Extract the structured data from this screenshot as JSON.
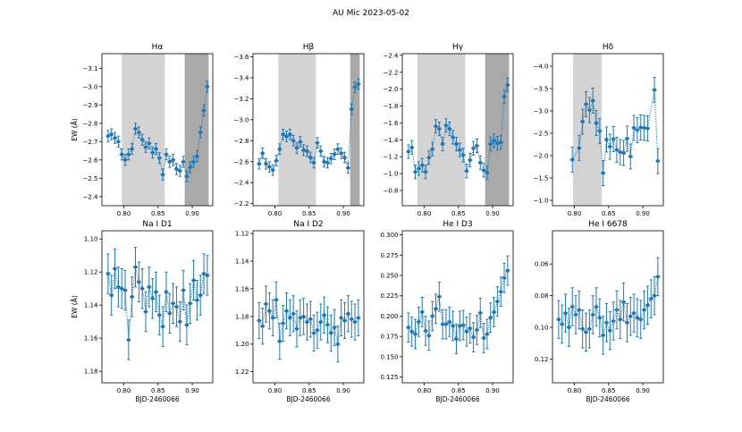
{
  "figure_title": "AU Mic 2023-05-02",
  "colors": {
    "series": "#1f77b4",
    "band_light": "#d3d3d3",
    "band_dark": "#a9a9a9"
  },
  "chart_data": [
    {
      "type": "line",
      "title": "Hα",
      "ylabel": "EW (Å)",
      "xlabel": "",
      "xlim": [
        0.768,
        0.93
      ],
      "ylim": [
        -3.18,
        -2.35
      ],
      "y_inverted": true,
      "xticks": [
        0.8,
        0.85,
        0.9
      ],
      "xtick_labels": [
        "0.80",
        "0.85",
        "0.90"
      ],
      "yticks": [
        -3.1,
        -3.0,
        -2.9,
        -2.8,
        -2.7,
        -2.6,
        -2.5,
        -2.4
      ],
      "ytick_labels": [
        "−3.1",
        "−3.0",
        "−2.9",
        "−2.8",
        "−2.7",
        "−2.6",
        "−2.5",
        "−2.4"
      ],
      "bands": [
        {
          "x0": 0.797,
          "x1": 0.86,
          "shade": "light"
        },
        {
          "x0": 0.889,
          "x1": 0.924,
          "shade": "dark"
        }
      ],
      "x": [
        0.777,
        0.782,
        0.787,
        0.792,
        0.797,
        0.802,
        0.807,
        0.812,
        0.817,
        0.822,
        0.827,
        0.832,
        0.837,
        0.842,
        0.847,
        0.852,
        0.857,
        0.862,
        0.867,
        0.872,
        0.877,
        0.882,
        0.887,
        0.892,
        0.897,
        0.902,
        0.907,
        0.912,
        0.917,
        0.922
      ],
      "y": [
        -2.73,
        -2.74,
        -2.72,
        -2.7,
        -2.63,
        -2.6,
        -2.63,
        -2.66,
        -2.77,
        -2.75,
        -2.71,
        -2.67,
        -2.69,
        -2.64,
        -2.66,
        -2.61,
        -2.52,
        -2.63,
        -2.59,
        -2.6,
        -2.55,
        -2.54,
        -2.59,
        -2.51,
        -2.56,
        -2.59,
        -2.62,
        -2.75,
        -2.87,
        -3.0
      ],
      "err": [
        0.03,
        0.03,
        0.03,
        0.03,
        0.03,
        0.03,
        0.03,
        0.03,
        0.03,
        0.03,
        0.03,
        0.03,
        0.03,
        0.03,
        0.03,
        0.03,
        0.03,
        0.03,
        0.03,
        0.03,
        0.03,
        0.03,
        0.03,
        0.03,
        0.03,
        0.03,
        0.03,
        0.03,
        0.03,
        0.03
      ]
    },
    {
      "type": "line",
      "title": "Hβ",
      "ylabel": "",
      "xlabel": "",
      "xlim": [
        0.768,
        0.93
      ],
      "ylim": [
        -3.63,
        -2.18
      ],
      "y_inverted": true,
      "xticks": [
        0.8,
        0.85,
        0.9
      ],
      "xtick_labels": [
        "0.80",
        "0.85",
        "0.90"
      ],
      "yticks": [
        -3.6,
        -3.4,
        -3.2,
        -3.0,
        -2.8,
        -2.6,
        -2.4,
        -2.2
      ],
      "ytick_labels": [
        "−3.6",
        "−3.4",
        "−3.2",
        "−3.0",
        "−2.8",
        "−2.6",
        "−2.4",
        "−2.2"
      ],
      "bands": [
        {
          "x0": 0.805,
          "x1": 0.86,
          "shade": "light"
        },
        {
          "x0": 0.91,
          "x1": 0.924,
          "shade": "dark"
        }
      ],
      "x": [
        0.777,
        0.782,
        0.787,
        0.792,
        0.797,
        0.802,
        0.807,
        0.812,
        0.817,
        0.822,
        0.827,
        0.832,
        0.837,
        0.842,
        0.847,
        0.852,
        0.857,
        0.862,
        0.867,
        0.872,
        0.877,
        0.882,
        0.887,
        0.892,
        0.897,
        0.902,
        0.907,
        0.912,
        0.917,
        0.922
      ],
      "y": [
        -2.58,
        -2.68,
        -2.58,
        -2.55,
        -2.52,
        -2.61,
        -2.72,
        -2.86,
        -2.84,
        -2.86,
        -2.8,
        -2.73,
        -2.79,
        -2.71,
        -2.7,
        -2.64,
        -2.59,
        -2.78,
        -2.7,
        -2.6,
        -2.59,
        -2.63,
        -2.67,
        -2.72,
        -2.68,
        -2.64,
        -2.54,
        -3.1,
        -3.31,
        -3.34
      ],
      "err": [
        0.05,
        0.05,
        0.05,
        0.05,
        0.05,
        0.05,
        0.05,
        0.05,
        0.05,
        0.05,
        0.05,
        0.05,
        0.05,
        0.05,
        0.05,
        0.05,
        0.05,
        0.05,
        0.05,
        0.05,
        0.05,
        0.05,
        0.05,
        0.05,
        0.05,
        0.05,
        0.05,
        0.05,
        0.05,
        0.05
      ]
    },
    {
      "type": "line",
      "title": "Hγ",
      "ylabel": "",
      "xlabel": "",
      "xlim": [
        0.768,
        0.93
      ],
      "ylim": [
        -2.42,
        -0.62
      ],
      "y_inverted": true,
      "xticks": [
        0.8,
        0.85,
        0.9
      ],
      "xtick_labels": [
        "0.80",
        "0.85",
        "0.90"
      ],
      "yticks": [
        -2.4,
        -2.2,
        -2.0,
        -1.8,
        -1.6,
        -1.4,
        -1.2,
        -1.0,
        -0.8
      ],
      "ytick_labels": [
        "−2.4",
        "−2.2",
        "−2.0",
        "−1.8",
        "−1.6",
        "−1.4",
        "−1.2",
        "−1.0",
        "−0.8"
      ],
      "bands": [
        {
          "x0": 0.79,
          "x1": 0.86,
          "shade": "light"
        },
        {
          "x0": 0.889,
          "x1": 0.924,
          "shade": "dark"
        }
      ],
      "x": [
        0.777,
        0.782,
        0.787,
        0.792,
        0.797,
        0.802,
        0.807,
        0.812,
        0.817,
        0.822,
        0.827,
        0.832,
        0.837,
        0.842,
        0.847,
        0.852,
        0.857,
        0.862,
        0.867,
        0.872,
        0.877,
        0.882,
        0.887,
        0.892,
        0.897,
        0.902,
        0.907,
        0.912,
        0.917,
        0.922
      ],
      "y": [
        -1.26,
        -1.31,
        -1.02,
        -1.06,
        -1.1,
        -1.02,
        -1.19,
        -1.29,
        -1.56,
        -1.53,
        -1.35,
        -1.57,
        -1.53,
        -1.43,
        -1.35,
        -1.28,
        -1.22,
        -1.03,
        -1.16,
        -1.3,
        -1.33,
        -1.13,
        -1.04,
        -1.01,
        -1.35,
        -1.39,
        -1.36,
        -1.37,
        -1.91,
        -2.05
      ],
      "err": [
        0.08,
        0.08,
        0.08,
        0.08,
        0.08,
        0.08,
        0.08,
        0.08,
        0.08,
        0.08,
        0.08,
        0.08,
        0.08,
        0.08,
        0.08,
        0.08,
        0.08,
        0.08,
        0.08,
        0.08,
        0.08,
        0.08,
        0.08,
        0.08,
        0.08,
        0.08,
        0.08,
        0.08,
        0.08,
        0.08
      ]
    },
    {
      "type": "line",
      "title": "Hδ",
      "ylabel": "",
      "xlabel": "",
      "xlim": [
        0.768,
        0.93
      ],
      "ylim": [
        -4.28,
        -0.88
      ],
      "y_inverted": true,
      "xticks": [
        0.8,
        0.85,
        0.9
      ],
      "xtick_labels": [
        "0.80",
        "0.85",
        "0.90"
      ],
      "yticks": [
        -4.0,
        -3.5,
        -3.0,
        -2.5,
        -2.0,
        -1.5,
        -1.0
      ],
      "ytick_labels": [
        "−4.0",
        "−3.5",
        "−3.0",
        "−2.5",
        "−2.0",
        "−1.5",
        "−1.0"
      ],
      "bands": [
        {
          "x0": 0.798,
          "x1": 0.84,
          "shade": "light"
        }
      ],
      "x": [
        0.797,
        0.807,
        0.812,
        0.817,
        0.822,
        0.827,
        0.832,
        0.837,
        0.842,
        0.847,
        0.852,
        0.857,
        0.862,
        0.867,
        0.872,
        0.877,
        0.882,
        0.887,
        0.892,
        0.897,
        0.902,
        0.907,
        0.917,
        0.922
      ],
      "y": [
        -1.91,
        -2.17,
        -2.76,
        -3.15,
        -3.02,
        -3.23,
        -2.73,
        -2.55,
        -1.61,
        -2.36,
        -2.2,
        -2.37,
        -2.13,
        -2.08,
        -2.06,
        -2.38,
        -1.98,
        -2.62,
        -2.57,
        -2.63,
        -2.62,
        -2.61,
        -3.47,
        -1.88
      ],
      "err": [
        0.28,
        0.28,
        0.28,
        0.28,
        0.28,
        0.28,
        0.28,
        0.28,
        0.28,
        0.28,
        0.28,
        0.28,
        0.28,
        0.28,
        0.28,
        0.28,
        0.28,
        0.28,
        0.28,
        0.28,
        0.28,
        0.28,
        0.28,
        0.28
      ]
    },
    {
      "type": "line",
      "title": "Na I D1",
      "ylabel": "EW (Å)",
      "xlabel": "BJD-2460066",
      "xlim": [
        0.768,
        0.93
      ],
      "ylim": [
        1.095,
        1.187
      ],
      "y_inverted": true,
      "xticks": [
        0.8,
        0.85,
        0.9
      ],
      "xtick_labels": [
        "0.80",
        "0.85",
        "0.90"
      ],
      "yticks": [
        1.1,
        1.12,
        1.14,
        1.16,
        1.18
      ],
      "ytick_labels": [
        "1.10",
        "1.12",
        "1.14",
        "1.16",
        "1.18"
      ],
      "bands": [],
      "x": [
        0.777,
        0.782,
        0.787,
        0.792,
        0.797,
        0.802,
        0.807,
        0.812,
        0.817,
        0.822,
        0.827,
        0.832,
        0.837,
        0.842,
        0.847,
        0.852,
        0.857,
        0.862,
        0.867,
        0.872,
        0.877,
        0.882,
        0.887,
        0.892,
        0.897,
        0.902,
        0.907,
        0.912,
        0.917,
        0.922
      ],
      "y": [
        1.121,
        1.134,
        1.118,
        1.129,
        1.13,
        1.131,
        1.161,
        1.135,
        1.117,
        1.126,
        1.13,
        1.144,
        1.129,
        1.136,
        1.132,
        1.146,
        1.153,
        1.132,
        1.145,
        1.139,
        1.141,
        1.15,
        1.131,
        1.152,
        1.139,
        1.125,
        1.137,
        1.134,
        1.121,
        1.122
      ],
      "err": [
        0.012,
        0.012,
        0.012,
        0.012,
        0.012,
        0.012,
        0.012,
        0.012,
        0.012,
        0.012,
        0.012,
        0.012,
        0.012,
        0.012,
        0.012,
        0.012,
        0.012,
        0.012,
        0.012,
        0.012,
        0.012,
        0.012,
        0.012,
        0.012,
        0.012,
        0.012,
        0.012,
        0.012,
        0.012,
        0.012
      ]
    },
    {
      "type": "line",
      "title": "Na I D2",
      "ylabel": "",
      "xlabel": "BJD-2460066",
      "xlim": [
        0.768,
        0.93
      ],
      "ylim": [
        1.118,
        1.228
      ],
      "y_inverted": true,
      "xticks": [
        0.8,
        0.85,
        0.9
      ],
      "xtick_labels": [
        "0.80",
        "0.85",
        "0.90"
      ],
      "yticks": [
        1.12,
        1.14,
        1.16,
        1.18,
        1.2,
        1.22
      ],
      "ytick_labels": [
        "1.12",
        "1.14",
        "1.16",
        "1.18",
        "1.20",
        "1.22"
      ],
      "bands": [],
      "x": [
        0.777,
        0.782,
        0.787,
        0.792,
        0.797,
        0.802,
        0.807,
        0.812,
        0.817,
        0.822,
        0.827,
        0.832,
        0.837,
        0.842,
        0.847,
        0.852,
        0.857,
        0.862,
        0.867,
        0.872,
        0.877,
        0.882,
        0.887,
        0.892,
        0.897,
        0.902,
        0.907,
        0.912,
        0.917,
        0.922
      ],
      "y": [
        1.183,
        1.187,
        1.171,
        1.176,
        1.181,
        1.168,
        1.198,
        1.185,
        1.176,
        1.181,
        1.178,
        1.189,
        1.181,
        1.18,
        1.184,
        1.182,
        1.192,
        1.19,
        1.184,
        1.179,
        1.186,
        1.192,
        1.188,
        1.2,
        1.181,
        1.183,
        1.178,
        1.182,
        1.184,
        1.181
      ],
      "err": [
        0.013,
        0.013,
        0.013,
        0.013,
        0.013,
        0.013,
        0.013,
        0.013,
        0.013,
        0.013,
        0.013,
        0.013,
        0.013,
        0.013,
        0.013,
        0.013,
        0.013,
        0.013,
        0.013,
        0.013,
        0.013,
        0.013,
        0.013,
        0.013,
        0.013,
        0.013,
        0.013,
        0.013,
        0.013,
        0.013
      ]
    },
    {
      "type": "line",
      "title": "He I D3",
      "ylabel": "",
      "xlabel": "BJD-2460066",
      "xlim": [
        0.768,
        0.93
      ],
      "ylim": [
        0.118,
        0.305
      ],
      "y_inverted": false,
      "xticks": [
        0.8,
        0.85,
        0.9
      ],
      "xtick_labels": [
        "0.80",
        "0.85",
        "0.90"
      ],
      "yticks": [
        0.125,
        0.15,
        0.175,
        0.2,
        0.225,
        0.25,
        0.275,
        0.3
      ],
      "ytick_labels": [
        "0.125",
        "0.150",
        "0.175",
        "0.200",
        "0.225",
        "0.250",
        "0.275",
        "0.300"
      ],
      "bands": [],
      "x": [
        0.777,
        0.782,
        0.787,
        0.792,
        0.797,
        0.802,
        0.807,
        0.812,
        0.817,
        0.822,
        0.827,
        0.832,
        0.837,
        0.842,
        0.847,
        0.852,
        0.857,
        0.862,
        0.867,
        0.872,
        0.877,
        0.882,
        0.887,
        0.892,
        0.897,
        0.902,
        0.907,
        0.912,
        0.917,
        0.922
      ],
      "y": [
        0.186,
        0.181,
        0.178,
        0.193,
        0.205,
        0.182,
        0.176,
        0.2,
        0.209,
        0.224,
        0.19,
        0.19,
        0.193,
        0.188,
        0.172,
        0.188,
        0.189,
        0.181,
        0.185,
        0.174,
        0.183,
        0.204,
        0.173,
        0.178,
        0.198,
        0.205,
        0.218,
        0.23,
        0.247,
        0.256
      ],
      "err": [
        0.018,
        0.018,
        0.018,
        0.018,
        0.018,
        0.018,
        0.018,
        0.018,
        0.018,
        0.018,
        0.018,
        0.018,
        0.018,
        0.018,
        0.018,
        0.018,
        0.018,
        0.018,
        0.018,
        0.018,
        0.018,
        0.018,
        0.018,
        0.018,
        0.018,
        0.018,
        0.018,
        0.018,
        0.018,
        0.018
      ]
    },
    {
      "type": "line",
      "title": "He I 6678",
      "ylabel": "",
      "xlabel": "BJD-2460066",
      "xlim": [
        0.768,
        0.93
      ],
      "ylim": [
        0.039,
        0.135
      ],
      "y_inverted": true,
      "xticks": [
        0.8,
        0.85,
        0.9
      ],
      "xtick_labels": [
        "0.80",
        "0.85",
        "0.90"
      ],
      "yticks": [
        0.06,
        0.08,
        0.1,
        0.12
      ],
      "ytick_labels": [
        "0.06",
        "0.08",
        "0.10",
        "0.12"
      ],
      "bands": [],
      "x": [
        0.777,
        0.782,
        0.787,
        0.792,
        0.797,
        0.802,
        0.807,
        0.812,
        0.817,
        0.822,
        0.827,
        0.832,
        0.837,
        0.842,
        0.847,
        0.852,
        0.857,
        0.862,
        0.867,
        0.872,
        0.877,
        0.882,
        0.887,
        0.892,
        0.897,
        0.902,
        0.907,
        0.912,
        0.917,
        0.922
      ],
      "y": [
        0.095,
        0.098,
        0.091,
        0.1,
        0.087,
        0.092,
        0.089,
        0.101,
        0.103,
        0.101,
        0.092,
        0.087,
        0.094,
        0.105,
        0.097,
        0.102,
        0.096,
        0.089,
        0.095,
        0.084,
        0.097,
        0.093,
        0.091,
        0.094,
        0.095,
        0.089,
        0.086,
        0.082,
        0.08,
        0.068
      ],
      "err": [
        0.012,
        0.012,
        0.012,
        0.012,
        0.012,
        0.012,
        0.012,
        0.012,
        0.012,
        0.012,
        0.012,
        0.012,
        0.012,
        0.012,
        0.012,
        0.012,
        0.012,
        0.012,
        0.012,
        0.012,
        0.012,
        0.012,
        0.012,
        0.012,
        0.012,
        0.012,
        0.012,
        0.012,
        0.012,
        0.012
      ]
    }
  ]
}
